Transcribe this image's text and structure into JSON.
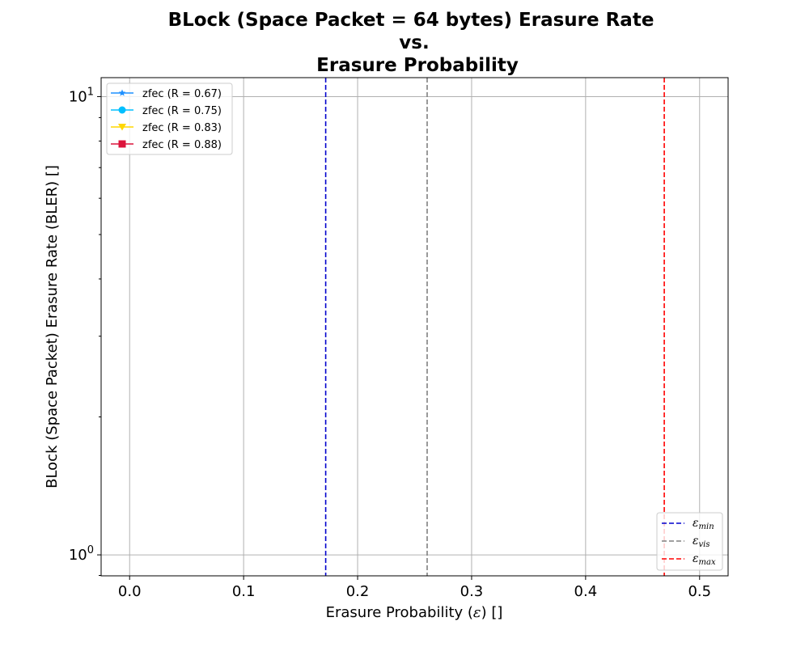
{
  "chart_data": {
    "type": "line",
    "title_lines": [
      "BLock (Space Packet = 64 bytes) Erasure Rate",
      "vs.",
      "Erasure Probability"
    ],
    "xlabel_prefix": "Erasure Probability (",
    "xlabel_symbol": "ε",
    "xlabel_suffix": ") []",
    "ylabel": "BLock (Space Packet) Erasure Rate (BLER) []",
    "xlim": [
      -0.025,
      0.525
    ],
    "ylim": [
      0.9,
      11.0
    ],
    "yscale": "log",
    "grid": true,
    "xticks": [
      {
        "value": 0.0,
        "label": "0.0"
      },
      {
        "value": 0.1,
        "label": "0.1"
      },
      {
        "value": 0.2,
        "label": "0.2"
      },
      {
        "value": 0.3,
        "label": "0.3"
      },
      {
        "value": 0.4,
        "label": "0.4"
      },
      {
        "value": 0.5,
        "label": "0.5"
      }
    ],
    "yticks_major": [
      {
        "value": 1,
        "base": "10",
        "exp": "0"
      },
      {
        "value": 10,
        "base": "10",
        "exp": "1"
      }
    ],
    "yticks_minor": [
      2,
      3,
      4,
      5,
      6,
      7,
      8,
      9
    ],
    "series": [
      {
        "name": "zfec (R = 0.67)",
        "color": "#1e90ff",
        "marker": "star",
        "x": [],
        "y": []
      },
      {
        "name": "zfec (R = 0.75)",
        "color": "#00bfff",
        "marker": "circle",
        "x": [],
        "y": []
      },
      {
        "name": "zfec (R = 0.83)",
        "color": "#ffd700",
        "marker": "triangle-down",
        "x": [],
        "y": []
      },
      {
        "name": "zfec (R = 0.88)",
        "color": "#dc143c",
        "marker": "square",
        "x": [],
        "y": []
      }
    ],
    "series_legend_position": "top-left",
    "vlines": [
      {
        "x": 0.172,
        "color": "#0000cd",
        "sub": "min"
      },
      {
        "x": 0.261,
        "color": "#808080",
        "sub": "vis"
      },
      {
        "x": 0.469,
        "color": "#ff0000",
        "sub": "max"
      }
    ],
    "vline_legend_symbol": "ε",
    "vline_legend_position": "bottom-right"
  }
}
